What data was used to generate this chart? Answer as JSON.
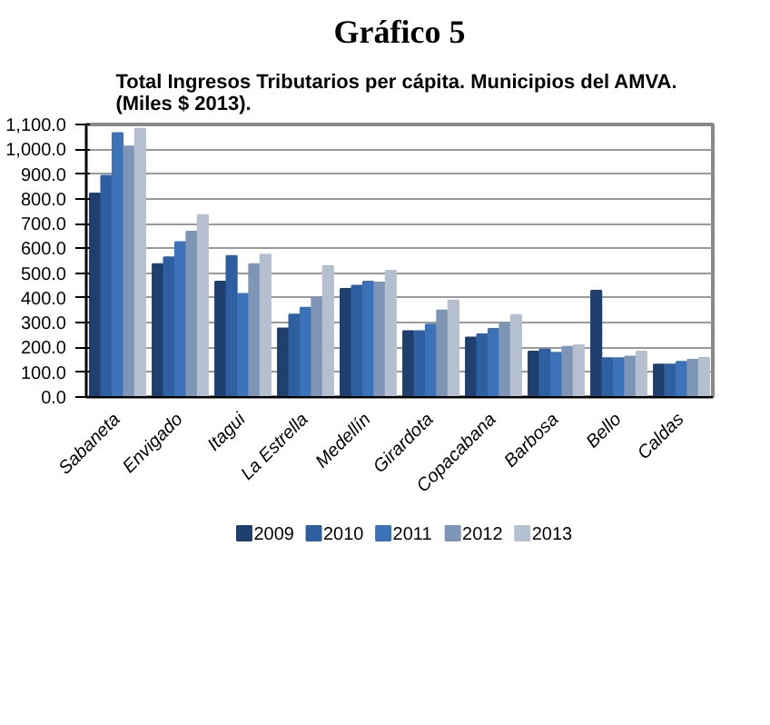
{
  "chart_data": {
    "type": "bar",
    "title": "Gráfico 5",
    "subtitle": "Total Ingresos Tributarios  per cápita. Municipios del AMVA.\n(Miles $ 2013).",
    "categories": [
      "Sabaneta",
      "Envigado",
      "Itagui",
      "La Estrella",
      "Medellín",
      "Girardota",
      "Copacabana",
      "Barbosa",
      "Bello",
      "Caldas"
    ],
    "series": [
      {
        "name": "2009",
        "color": "#1f3f6e",
        "values": [
          821,
          536,
          466,
          277,
          436,
          266,
          240,
          183,
          429,
          131
        ]
      },
      {
        "name": "2010",
        "color": "#2e5fa0",
        "values": [
          893,
          564,
          569,
          333,
          449,
          266,
          253,
          192,
          157,
          131
        ]
      },
      {
        "name": "2011",
        "color": "#3b72b8",
        "values": [
          1065,
          625,
          416,
          360,
          466,
          292,
          275,
          179,
          157,
          142
        ]
      },
      {
        "name": "2012",
        "color": "#7f95b5",
        "values": [
          1011,
          667,
          536,
          401,
          462,
          349,
          301,
          203,
          163,
          150
        ]
      },
      {
        "name": "2013",
        "color": "#b4bfcf",
        "values": [
          1083,
          734,
          575,
          529,
          510,
          390,
          331,
          209,
          183,
          159
        ]
      }
    ],
    "ylim": [
      0,
      1100
    ],
    "yticks": [
      {
        "value": 0,
        "label": "0.0"
      },
      {
        "value": 100,
        "label": "100.0"
      },
      {
        "value": 200,
        "label": "200.0"
      },
      {
        "value": 300,
        "label": "300.0"
      },
      {
        "value": 400,
        "label": "400.0"
      },
      {
        "value": 500,
        "label": "500.0"
      },
      {
        "value": 600,
        "label": "600.0"
      },
      {
        "value": 700,
        "label": "700.0"
      },
      {
        "value": 800,
        "label": "800.0"
      },
      {
        "value": 900,
        "label": "900.0"
      },
      {
        "value": 1000,
        "label": "1,000.0"
      },
      {
        "value": 1100,
        "label": "1,100.0"
      }
    ],
    "grid": "y",
    "legend": "bottom"
  }
}
